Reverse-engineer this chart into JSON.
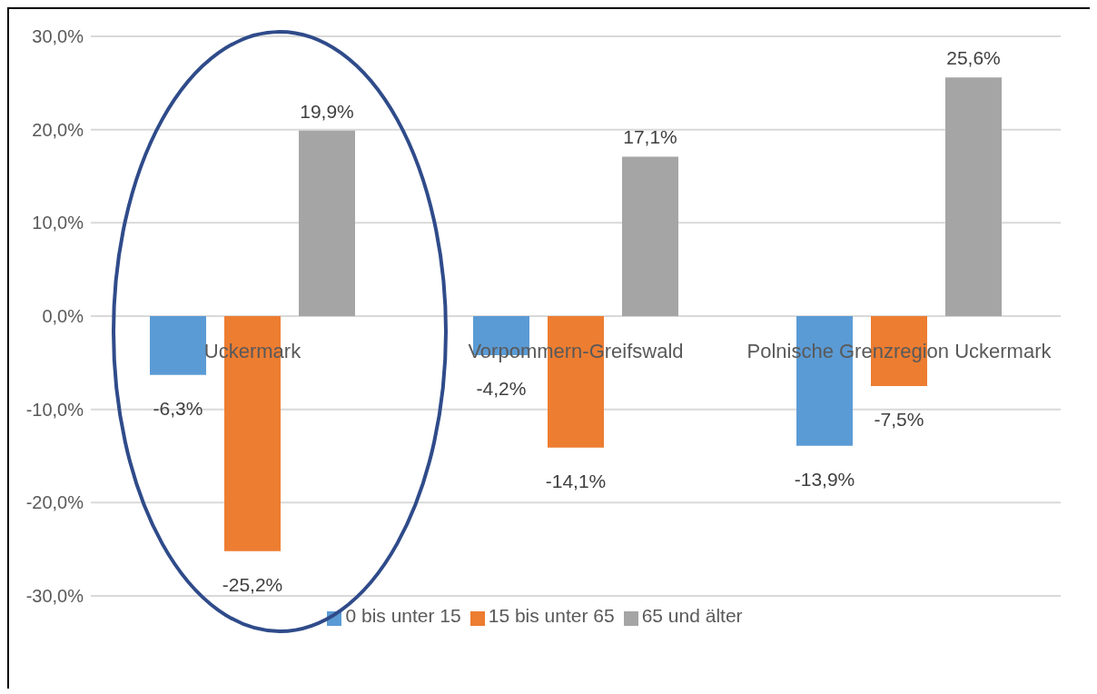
{
  "chart_data": {
    "type": "bar",
    "categories": [
      "Uckermark",
      "Vorpommern-Greifswald",
      "Polnische Grenzregion Uckermark"
    ],
    "series": [
      {
        "name": "0 bis unter 15",
        "color": "#5b9bd5",
        "values": [
          -6.3,
          -4.2,
          -13.9
        ],
        "value_labels": [
          "-6,3%",
          "-4,2%",
          "-13,9%"
        ]
      },
      {
        "name": "15 bis unter 65",
        "color": "#ed7d31",
        "values": [
          -25.2,
          -14.1,
          -7.5
        ],
        "value_labels": [
          "-25,2%",
          "-14,1%",
          "-7,5%"
        ]
      },
      {
        "name": "65 und älter",
        "color": "#a5a5a5",
        "values": [
          19.9,
          17.1,
          25.6
        ],
        "value_labels": [
          "19,9%",
          "17,1%",
          "25,6%"
        ]
      }
    ],
    "ylim": [
      -30,
      30
    ],
    "yticks": [
      {
        "value": -30,
        "label": "-30,0%"
      },
      {
        "value": -20,
        "label": "-20,0%"
      },
      {
        "value": -10,
        "label": "-10,0%"
      },
      {
        "value": 0,
        "label": "0,0%"
      },
      {
        "value": 10,
        "label": "10,0%"
      },
      {
        "value": 20,
        "label": "20,0%"
      },
      {
        "value": 30,
        "label": "30,0%"
      }
    ],
    "grid": "y",
    "legend": "bottom"
  }
}
